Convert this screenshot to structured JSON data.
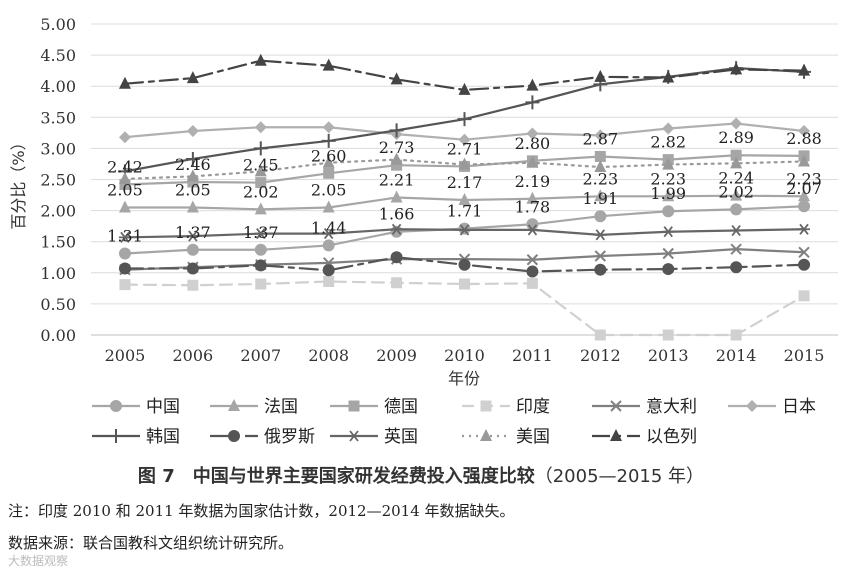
{
  "chart_data": {
    "type": "line",
    "title": "图 7　中国与世界主要国家研发经费投入强度比较",
    "title_range": "（2005—2015 年）",
    "xlabel": "年份",
    "ylabel": "百分比（%）",
    "ylim": [
      0,
      5
    ],
    "yticks": [
      "0.00",
      "0.50",
      "1.00",
      "1.50",
      "2.00",
      "2.50",
      "3.00",
      "3.50",
      "4.00",
      "4.50",
      "5.00"
    ],
    "categories": [
      "2005",
      "2006",
      "2007",
      "2008",
      "2009",
      "2010",
      "2011",
      "2012",
      "2013",
      "2014",
      "2015"
    ],
    "grid": "horizontal",
    "legend_position": "bottom",
    "series": [
      {
        "name": "中国",
        "color": "#a6a6a6",
        "marker": "circle",
        "dash": "solid",
        "values": [
          1.31,
          1.37,
          1.37,
          1.44,
          1.66,
          1.71,
          1.78,
          1.91,
          1.99,
          2.02,
          2.07
        ],
        "labels": [
          "1.31",
          "1.37",
          "1.37",
          "1.44",
          "1.66",
          "1.71",
          "1.78",
          "1.91",
          "1.99",
          "2.02",
          "2.07"
        ]
      },
      {
        "name": "法国",
        "color": "#a6a6a6",
        "marker": "triangle",
        "dash": "solid",
        "values": [
          2.05,
          2.05,
          2.02,
          2.05,
          2.21,
          2.17,
          2.19,
          2.23,
          2.23,
          2.24,
          2.23
        ],
        "labels": [
          "2.05",
          "2.05",
          "2.02",
          "2.05",
          "2.21",
          "2.17",
          "2.19",
          "2.23",
          "2.23",
          "2.24",
          "2.23"
        ]
      },
      {
        "name": "德国",
        "color": "#a6a6a6",
        "marker": "square",
        "dash": "solid",
        "values": [
          2.42,
          2.46,
          2.45,
          2.6,
          2.73,
          2.71,
          2.8,
          2.87,
          2.82,
          2.89,
          2.88
        ],
        "labels": [
          "2.42",
          "2.46",
          "2.45",
          "2.60",
          "2.73",
          "2.71",
          "2.80",
          "2.87",
          "2.82",
          "2.89",
          "2.88"
        ]
      },
      {
        "name": "印度",
        "color": "#d0d0d0",
        "marker": "square",
        "dash": "long",
        "values": [
          0.81,
          0.8,
          0.82,
          0.86,
          0.84,
          0.82,
          0.83,
          0.0,
          0.0,
          0.0,
          0.63
        ]
      },
      {
        "name": "意大利",
        "color": "#808080",
        "marker": "x",
        "dash": "solid",
        "values": [
          1.05,
          1.09,
          1.13,
          1.16,
          1.22,
          1.22,
          1.21,
          1.27,
          1.31,
          1.38,
          1.33
        ]
      },
      {
        "name": "日本",
        "color": "#b0b0b0",
        "marker": "diamond",
        "dash": "solid",
        "values": [
          3.18,
          3.28,
          3.34,
          3.34,
          3.23,
          3.14,
          3.24,
          3.21,
          3.32,
          3.4,
          3.28
        ]
      },
      {
        "name": "韩国",
        "color": "#555555",
        "marker": "plus",
        "dash": "solid",
        "values": [
          2.63,
          2.83,
          3.0,
          3.12,
          3.29,
          3.47,
          3.74,
          4.03,
          4.15,
          4.29,
          4.23
        ]
      },
      {
        "name": "俄罗斯",
        "color": "#555555",
        "marker": "circle",
        "dash": "dashdot",
        "values": [
          1.07,
          1.07,
          1.12,
          1.04,
          1.25,
          1.13,
          1.02,
          1.05,
          1.06,
          1.09,
          1.13
        ]
      },
      {
        "name": "英国",
        "color": "#666666",
        "marker": "star",
        "dash": "solid",
        "values": [
          1.57,
          1.59,
          1.63,
          1.63,
          1.7,
          1.69,
          1.69,
          1.61,
          1.66,
          1.68,
          1.7
        ]
      },
      {
        "name": "美国",
        "color": "#999999",
        "marker": "triangle",
        "dash": "dot",
        "values": [
          2.51,
          2.55,
          2.63,
          2.77,
          2.82,
          2.74,
          2.77,
          2.7,
          2.74,
          2.76,
          2.79
        ]
      },
      {
        "name": "以色列",
        "color": "#444444",
        "marker": "triangle",
        "dash": "dashdot",
        "values": [
          4.04,
          4.13,
          4.41,
          4.33,
          4.11,
          3.94,
          4.01,
          4.15,
          4.14,
          4.27,
          4.25
        ]
      }
    ]
  },
  "notes": {
    "note1": "注：印度 2010 和 2011 年数据为国家估计数，2012—2014 年数据缺失。",
    "note2": "数据来源：联合国教科文组织统计研究所。"
  },
  "watermark": "大数据观察"
}
